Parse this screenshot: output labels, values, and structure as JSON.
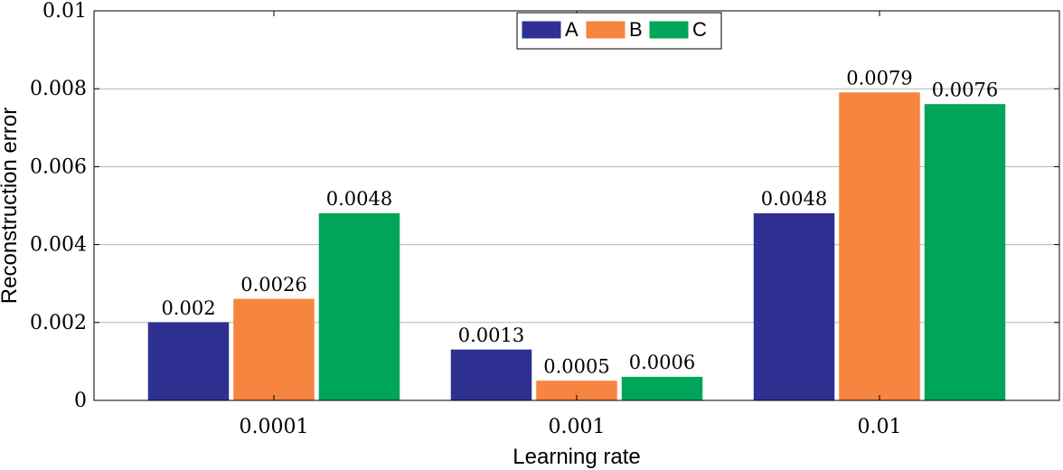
{
  "chart_data": {
    "type": "bar",
    "title": "",
    "xlabel": "Learning rate",
    "ylabel": "Reconstruction error",
    "categories": [
      "0.0001",
      "0.001",
      "0.01"
    ],
    "series": [
      {
        "name": "A",
        "color": "#2e3192",
        "values": [
          0.002,
          0.0013,
          0.0048
        ],
        "labels": [
          "0.002",
          "0.0013",
          "0.0048"
        ]
      },
      {
        "name": "B",
        "color": "#f7843f",
        "values": [
          0.0026,
          0.0005,
          0.0079
        ],
        "labels": [
          "0.0026",
          "0.0005",
          "0.0079"
        ]
      },
      {
        "name": "C",
        "color": "#00a55a",
        "values": [
          0.0048,
          0.0006,
          0.0076
        ],
        "labels": [
          "0.0048",
          "0.0006",
          "0.0076"
        ]
      }
    ],
    "ylim": [
      0,
      0.01
    ],
    "yticks": [
      0,
      0.002,
      0.004,
      0.006,
      0.008,
      0.01
    ],
    "ytick_labels": [
      "0",
      "0.002",
      "0.004",
      "0.006",
      "0.008",
      "0.01"
    ],
    "grid": "horizontal",
    "legend_position": "top-center"
  }
}
